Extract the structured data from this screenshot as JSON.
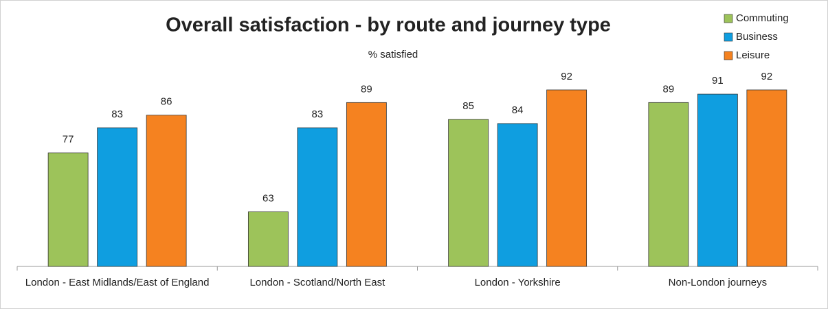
{
  "chart_data": {
    "type": "bar",
    "title": "Overall satisfaction - by route and journey type",
    "subtitle": "% satisfied",
    "categories": [
      "London - East Midlands/East of England",
      "London - Scotland/North East",
      "London - Yorkshire",
      "Non-London journeys"
    ],
    "series": [
      {
        "name": "Commuting",
        "color": "#9dc35a",
        "values": [
          77,
          63,
          85,
          89
        ]
      },
      {
        "name": "Business",
        "color": "#0f9ee0",
        "values": [
          83,
          83,
          84,
          91
        ]
      },
      {
        "name": "Leisure",
        "color": "#f58220",
        "values": [
          86,
          89,
          92,
          92
        ]
      }
    ],
    "ylim": [
      50,
      100
    ],
    "legend": "top-right",
    "title_color": "#e8262a"
  }
}
